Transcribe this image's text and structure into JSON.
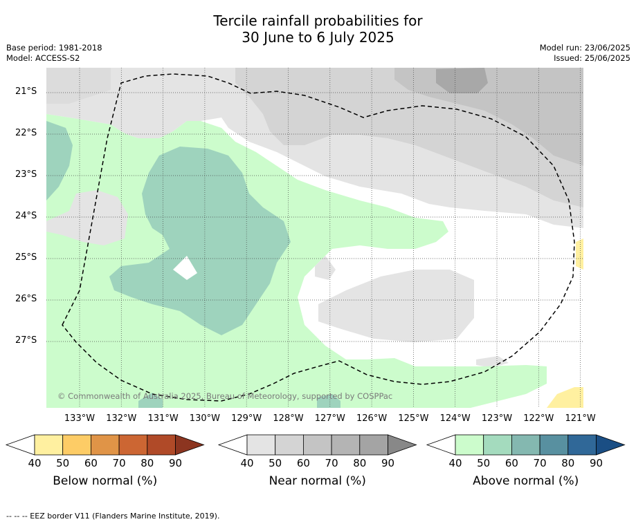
{
  "title_line1": "Tercile rainfall probabilities for",
  "title_line2": "30 June to 6 July 2025",
  "base_period": "Base period: 1981-2018",
  "model": "Model: ACCESS-S2",
  "model_run": "Model run: 23/06/2025",
  "issued": "Issued: 25/06/2025",
  "copyright": "© Commonwealth of Australia 2025, Bureau of Meteorology, supported by COSPPac",
  "footer": "--  --  -- EEZ border V11 (Flanders Marine Institute, 2019).",
  "lat_labels": [
    "21°S",
    "22°S",
    "23°S",
    "24°S",
    "25°S",
    "26°S",
    "27°S"
  ],
  "lon_labels": [
    "133°W",
    "132°W",
    "131°W",
    "130°W",
    "129°W",
    "128°W",
    "127°W",
    "126°W",
    "125°W",
    "124°W",
    "123°W",
    "122°W",
    "121°W"
  ],
  "colorbars": [
    {
      "name": "below",
      "title": "Below normal (%)",
      "ticks": [
        "40",
        "50",
        "60",
        "70",
        "80",
        "90"
      ],
      "colors": [
        "#ffffff",
        "#fff0a0",
        "#fdcc66",
        "#e09447",
        "#cc6633",
        "#b04a28",
        "#8c3520"
      ]
    },
    {
      "name": "near",
      "title": "Near normal (%)",
      "ticks": [
        "40",
        "50",
        "60",
        "70",
        "80",
        "90"
      ],
      "colors": [
        "#ffffff",
        "#e4e4e4",
        "#d4d4d4",
        "#c4c4c4",
        "#b4b4b4",
        "#a4a4a4",
        "#888888"
      ]
    },
    {
      "name": "above",
      "title": "Above normal (%)",
      "ticks": [
        "40",
        "50",
        "60",
        "70",
        "80",
        "90"
      ],
      "colors": [
        "#ffffff",
        "#ccfccc",
        "#a4dbbe",
        "#84b8b0",
        "#5890a0",
        "#306898",
        "#1a4e84"
      ]
    }
  ]
}
